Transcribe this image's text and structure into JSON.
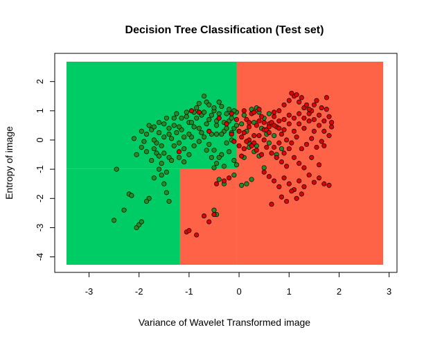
{
  "chart_data": {
    "type": "scatter",
    "title": "Decision Tree Classification (Test set)",
    "xlabel": "Variance of Wavelet Transformed image",
    "ylabel": "Entropy of image",
    "xlim": [
      -3.45,
      2.88
    ],
    "ylim": [
      -4.27,
      2.68
    ],
    "x_ticks": [
      -3,
      -2,
      -1,
      0,
      1,
      2,
      3
    ],
    "y_ticks": [
      -4,
      -3,
      -2,
      -1,
      0,
      1,
      2
    ],
    "grid": false,
    "legend": "none",
    "colors": {
      "region_class_0": "#00cc66",
      "region_class_1": "#ff6347",
      "point_class_0": "#228b22",
      "point_class_1": "#dd0000",
      "point_border": "#000000",
      "frame": "#000000"
    },
    "decision_regions": [
      {
        "class": 0,
        "x": [
          -3.45,
          -0.05
        ],
        "y": [
          -0.98,
          2.68
        ]
      },
      {
        "class": 0,
        "x": [
          -3.45,
          -1.18
        ],
        "y": [
          -4.27,
          -0.98
        ]
      },
      {
        "class": 1,
        "x": [
          -0.05,
          2.88
        ],
        "y": [
          -4.27,
          2.68
        ]
      },
      {
        "class": 1,
        "x": [
          -1.18,
          -0.05
        ],
        "y": [
          -4.27,
          -0.98
        ]
      }
    ],
    "series": [
      {
        "class": 0,
        "points": [
          [
            -2.45,
            -1.0
          ],
          [
            -2.5,
            -2.75
          ],
          [
            -2.3,
            -2.4
          ],
          [
            -2.2,
            -1.85
          ],
          [
            -2.15,
            -1.9
          ],
          [
            -2.1,
            0.05
          ],
          [
            -2.05,
            -3.0
          ],
          [
            -2.0,
            -2.9
          ],
          [
            -1.95,
            -2.8
          ],
          [
            -1.9,
            -0.05
          ],
          [
            -1.95,
            0.3
          ],
          [
            -1.85,
            0.2
          ],
          [
            -1.8,
            0.5
          ],
          [
            -1.75,
            0.35
          ],
          [
            -1.7,
            -0.3
          ],
          [
            -1.8,
            -2.0
          ],
          [
            -1.85,
            -2.1
          ],
          [
            -1.7,
            -1.3
          ],
          [
            -1.65,
            -0.1
          ],
          [
            -1.6,
            0.6
          ],
          [
            -1.55,
            -0.2
          ],
          [
            -1.5,
            -0.45
          ],
          [
            -1.45,
            0.75
          ],
          [
            -1.4,
            -0.6
          ],
          [
            -1.6,
            -1.0
          ],
          [
            -1.55,
            -1.2
          ],
          [
            -1.5,
            -1.5
          ],
          [
            -1.45,
            -1.8
          ],
          [
            -1.4,
            -2.1
          ],
          [
            -1.35,
            0.05
          ],
          [
            -1.3,
            0.5
          ],
          [
            -1.25,
            0.25
          ],
          [
            -1.2,
            -0.1
          ],
          [
            -1.15,
            0.35
          ],
          [
            -1.1,
            -0.3
          ],
          [
            -1.05,
            0.8
          ],
          [
            -1.0,
            0.6
          ],
          [
            -0.95,
            0.1
          ],
          [
            -0.9,
            0.95
          ],
          [
            -0.85,
            1.1
          ],
          [
            -0.8,
            0.4
          ],
          [
            -0.75,
            0.85
          ],
          [
            -0.7,
            1.5
          ],
          [
            -0.65,
            1.3
          ],
          [
            -0.6,
            0.7
          ],
          [
            -0.55,
            0.2
          ],
          [
            -0.5,
            1.0
          ],
          [
            -0.45,
            0.5
          ],
          [
            -0.4,
            0.9
          ],
          [
            -0.35,
            -0.5
          ],
          [
            -0.3,
            0.3
          ],
          [
            -0.25,
            0.9
          ],
          [
            -0.2,
            0.65
          ],
          [
            -0.15,
            0.0
          ],
          [
            -0.1,
            0.4
          ],
          [
            -0.05,
            0.95
          ],
          [
            -1.7,
            0.0
          ],
          [
            -1.6,
            0.25
          ],
          [
            -1.5,
            0.1
          ],
          [
            -1.4,
            0.4
          ],
          [
            -1.3,
            -0.2
          ],
          [
            -1.2,
            -0.6
          ],
          [
            -1.1,
            -0.75
          ],
          [
            -1.0,
            -0.5
          ],
          [
            -0.9,
            -0.2
          ],
          [
            -0.8,
            -0.05
          ],
          [
            -0.7,
            0.1
          ],
          [
            -0.6,
            -0.15
          ],
          [
            -0.5,
            -0.35
          ],
          [
            -0.45,
            -0.8
          ],
          [
            -0.4,
            -0.6
          ],
          [
            -0.3,
            -0.9
          ],
          [
            -0.2,
            -0.4
          ],
          [
            -0.1,
            -0.7
          ],
          [
            -0.05,
            -0.85
          ],
          [
            -1.25,
            0.9
          ],
          [
            -1.15,
            0.75
          ],
          [
            -1.05,
            0.95
          ],
          [
            -0.95,
            0.6
          ],
          [
            -0.85,
            0.75
          ],
          [
            -0.75,
            0.25
          ],
          [
            -0.65,
            0.55
          ],
          [
            -0.55,
            0.85
          ],
          [
            -0.45,
            0.65
          ],
          [
            -0.35,
            0.2
          ],
          [
            -0.25,
            0.4
          ],
          [
            -0.15,
            0.75
          ],
          [
            -1.35,
            -0.7
          ],
          [
            -1.45,
            -1.1
          ],
          [
            -1.55,
            -0.8
          ],
          [
            -1.65,
            -0.45
          ],
          [
            -1.75,
            -0.7
          ],
          [
            -1.85,
            -0.4
          ],
          [
            -1.95,
            -0.25
          ],
          [
            -2.05,
            -0.5
          ],
          [
            -0.6,
            1.2
          ],
          [
            -0.5,
            1.1
          ],
          [
            -0.4,
            1.3
          ],
          [
            -0.3,
            0.6
          ],
          [
            -0.2,
            1.05
          ],
          [
            -0.1,
            1.0
          ],
          [
            -0.8,
            1.25
          ],
          [
            -0.7,
            0.95
          ],
          [
            -0.9,
            0.45
          ],
          [
            -1.0,
            0.2
          ],
          [
            -1.1,
            0.1
          ],
          [
            -1.2,
            0.45
          ],
          [
            -1.3,
            0.75
          ],
          [
            -1.4,
            0.2
          ],
          [
            -1.5,
            0.55
          ],
          [
            -1.6,
            -0.55
          ],
          [
            -1.7,
            0.45
          ],
          [
            -0.65,
            -0.35
          ],
          [
            -0.55,
            -0.6
          ],
          [
            -0.5,
            -0.95
          ],
          [
            -0.25,
            -0.1
          ],
          [
            -0.15,
            0.25
          ],
          [
            -0.05,
            0.5
          ],
          [
            -0.35,
            1.15
          ],
          [
            -0.45,
            0.2
          ],
          [
            0.05,
            0.55
          ],
          [
            0.1,
            0.85
          ],
          [
            0.15,
            0.3
          ],
          [
            0.2,
            -0.1
          ],
          [
            0.25,
            1.05
          ],
          [
            0.3,
            0.6
          ],
          [
            0.35,
            1.1
          ],
          [
            0.4,
            0.95
          ],
          [
            0.45,
            0.4
          ],
          [
            0.5,
            0.75
          ],
          [
            0.55,
            0.2
          ],
          [
            0.6,
            0.9
          ],
          [
            0.2,
            -0.25
          ],
          [
            0.3,
            -0.4
          ],
          [
            0.4,
            -0.55
          ],
          [
            0.5,
            -0.95
          ],
          [
            0.25,
            -1.35
          ],
          [
            0.15,
            -1.5
          ],
          [
            0.05,
            -1.55
          ],
          [
            -0.1,
            -1.2
          ],
          [
            -0.3,
            -1.5
          ],
          [
            -0.4,
            -1.35
          ],
          [
            -0.5,
            -2.4
          ],
          [
            -0.45,
            -2.55
          ],
          [
            0.1,
            -0.6
          ],
          [
            0.35,
            -0.2
          ],
          [
            0.6,
            -0.1
          ],
          [
            0.7,
            0.15
          ],
          [
            0.75,
            -0.5
          ],
          [
            0.85,
            -0.3
          ]
        ]
      },
      {
        "class": 1,
        "points": [
          [
            -1.05,
            -3.15
          ],
          [
            -1.0,
            -3.1
          ],
          [
            -0.85,
            -3.25
          ],
          [
            -0.6,
            -2.8
          ],
          [
            -0.7,
            -2.6
          ],
          [
            -0.5,
            -2.55
          ],
          [
            -0.3,
            -1.4
          ],
          [
            -0.2,
            -1.3
          ],
          [
            -0.45,
            -1.5
          ],
          [
            0.05,
            -0.55
          ],
          [
            0.1,
            -0.3
          ],
          [
            0.2,
            0.0
          ],
          [
            0.3,
            -0.1
          ],
          [
            0.4,
            0.15
          ],
          [
            0.5,
            0.35
          ],
          [
            0.6,
            0.55
          ],
          [
            0.7,
            0.8
          ],
          [
            0.8,
            1.0
          ],
          [
            0.9,
            1.2
          ],
          [
            1.0,
            1.35
          ],
          [
            1.1,
            1.5
          ],
          [
            1.2,
            1.3
          ],
          [
            1.3,
            1.1
          ],
          [
            1.4,
            0.9
          ],
          [
            1.5,
            0.7
          ],
          [
            1.6,
            0.5
          ],
          [
            1.7,
            0.3
          ],
          [
            1.8,
            0.15
          ],
          [
            1.85,
            0.45
          ],
          [
            1.05,
            1.6
          ],
          [
            1.15,
            1.55
          ],
          [
            1.25,
            1.45
          ],
          [
            1.35,
            1.2
          ],
          [
            1.45,
            1.0
          ],
          [
            1.55,
            1.35
          ],
          [
            1.65,
            1.1
          ],
          [
            1.75,
            1.45
          ],
          [
            1.8,
            0.8
          ],
          [
            1.85,
            0.6
          ],
          [
            0.15,
            0.7
          ],
          [
            0.25,
            0.9
          ],
          [
            0.35,
            0.5
          ],
          [
            0.45,
            0.8
          ],
          [
            0.55,
            0.35
          ],
          [
            0.65,
            0.6
          ],
          [
            0.75,
            0.45
          ],
          [
            0.85,
            0.2
          ],
          [
            0.95,
            0.0
          ],
          [
            1.05,
            -0.1
          ],
          [
            1.15,
            0.1
          ],
          [
            1.25,
            -0.3
          ],
          [
            1.35,
            -0.15
          ],
          [
            1.45,
            0.05
          ],
          [
            1.55,
            -0.25
          ],
          [
            1.65,
            -0.05
          ],
          [
            0.1,
            0.25
          ],
          [
            0.2,
            0.45
          ],
          [
            0.3,
            0.15
          ],
          [
            0.4,
            0.65
          ],
          [
            0.5,
            0.0
          ],
          [
            0.6,
            0.25
          ],
          [
            0.7,
            0.5
          ],
          [
            0.8,
            0.65
          ],
          [
            0.9,
            0.35
          ],
          [
            1.0,
            0.55
          ],
          [
            1.1,
            0.75
          ],
          [
            1.2,
            0.9
          ],
          [
            1.3,
            0.4
          ],
          [
            1.4,
            0.65
          ],
          [
            1.5,
            0.3
          ],
          [
            0.05,
            0.1
          ],
          [
            0.15,
            -0.05
          ],
          [
            0.25,
            -0.2
          ],
          [
            0.35,
            -0.35
          ],
          [
            0.45,
            -0.5
          ],
          [
            0.55,
            -0.25
          ],
          [
            0.65,
            -0.45
          ],
          [
            0.75,
            -0.6
          ],
          [
            0.85,
            -0.75
          ],
          [
            0.95,
            -0.9
          ],
          [
            0.5,
            -1.1
          ],
          [
            0.6,
            -1.25
          ],
          [
            0.7,
            -1.4
          ],
          [
            0.8,
            -1.6
          ],
          [
            0.9,
            -1.3
          ],
          [
            1.0,
            -1.5
          ],
          [
            1.1,
            -1.7
          ],
          [
            1.2,
            -1.4
          ],
          [
            1.3,
            -1.6
          ],
          [
            1.4,
            -1.2
          ],
          [
            1.5,
            -1.45
          ],
          [
            1.6,
            -1.3
          ],
          [
            1.7,
            -1.5
          ],
          [
            1.8,
            -1.55
          ],
          [
            0.85,
            -1.95
          ],
          [
            0.95,
            -2.1
          ],
          [
            1.05,
            -1.75
          ],
          [
            1.15,
            -2.0
          ],
          [
            1.25,
            -1.85
          ],
          [
            0.65,
            -2.2
          ],
          [
            -0.15,
            0.2
          ],
          [
            -0.1,
            -0.05
          ],
          [
            0.0,
            0.3
          ],
          [
            -0.05,
            0.7
          ],
          [
            0.1,
            1.0
          ],
          [
            0.2,
            0.6
          ],
          [
            0.3,
            0.95
          ],
          [
            0.4,
            1.05
          ],
          [
            0.5,
            0.6
          ],
          [
            0.6,
            0.45
          ],
          [
            0.7,
            0.95
          ],
          [
            0.8,
            0.4
          ],
          [
            0.9,
            0.7
          ],
          [
            1.0,
            0.85
          ],
          [
            1.1,
            0.3
          ],
          [
            1.2,
            0.55
          ],
          [
            1.3,
            0.75
          ],
          [
            1.4,
            1.05
          ],
          [
            1.5,
            1.2
          ],
          [
            1.6,
            0.85
          ],
          [
            1.7,
            0.65
          ],
          [
            1.75,
            1.05
          ],
          [
            -0.8,
            0.95
          ],
          [
            -0.6,
            0.3
          ],
          [
            -0.4,
            0.75
          ],
          [
            -0.25,
            0.55
          ],
          [
            -0.15,
            0.9
          ],
          [
            -1.2,
            -0.4
          ],
          [
            -0.95,
            1.0
          ],
          [
            0.0,
            -0.2
          ],
          [
            0.9,
            -0.45
          ],
          [
            1.0,
            -0.3
          ],
          [
            1.1,
            -0.6
          ],
          [
            1.2,
            -0.8
          ],
          [
            1.3,
            -0.95
          ],
          [
            1.45,
            -0.6
          ],
          [
            1.6,
            -0.85
          ],
          [
            1.7,
            -0.2
          ],
          [
            0.8,
            -0.1
          ],
          [
            0.7,
            -0.25
          ]
        ]
      }
    ]
  }
}
